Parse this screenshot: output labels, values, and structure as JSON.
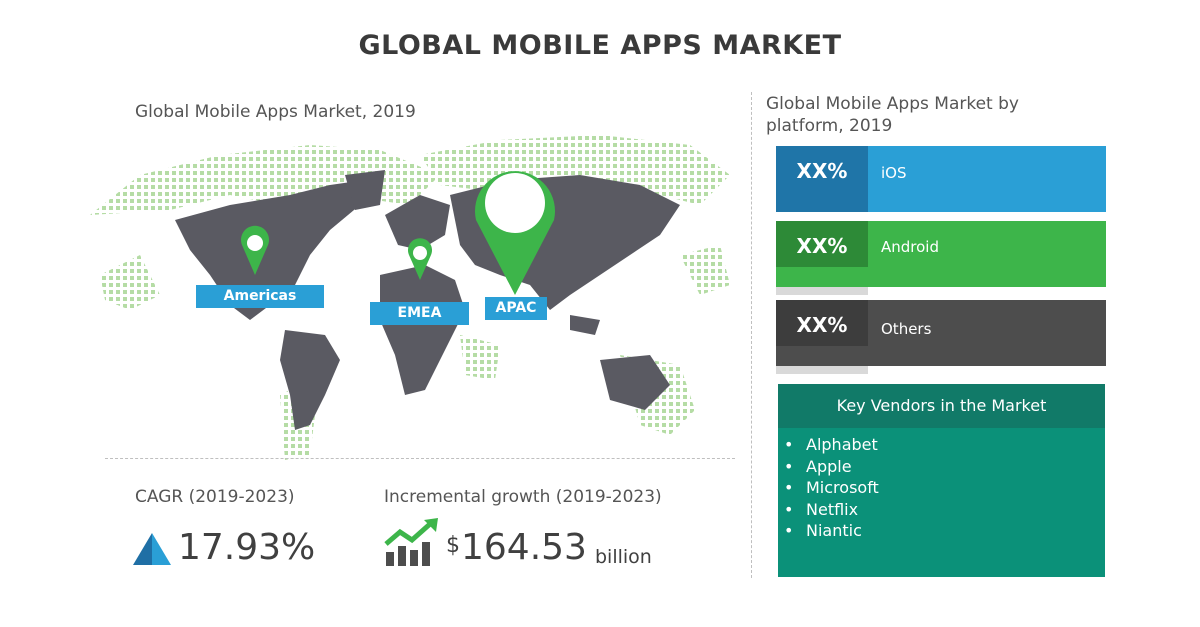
{
  "title": "GLOBAL MOBILE APPS MARKET",
  "map": {
    "label": "Global Mobile Apps Market, 2019",
    "regions": [
      "Americas",
      "EMEA",
      "APAC"
    ]
  },
  "cagr": {
    "label": "CAGR (2019-2023)",
    "value": "17.93%"
  },
  "growth": {
    "label": "Incremental growth (2019-2023)",
    "currency": "$",
    "value": "164.53",
    "unit": "billion"
  },
  "platforms": {
    "label": "Global Mobile Apps Market by platform, 2019",
    "items": [
      {
        "share": "XX%",
        "name": "iOS",
        "color": "#2a9fd6"
      },
      {
        "share": "XX%",
        "name": "Android",
        "color": "#3db54a"
      },
      {
        "share": "XX%",
        "name": "Others",
        "color": "#4d4d4d"
      }
    ]
  },
  "vendors": {
    "title": "Key Vendors in the Market",
    "items": [
      "Alphabet",
      "Apple",
      "Microsoft",
      "Netflix",
      "Niantic"
    ]
  },
  "colors": {
    "accent_blue": "#2a9fd6",
    "accent_green": "#3db54a",
    "teal": "#0b9179",
    "map_land": "#5a5a62",
    "map_dots": "#b5dca5"
  }
}
